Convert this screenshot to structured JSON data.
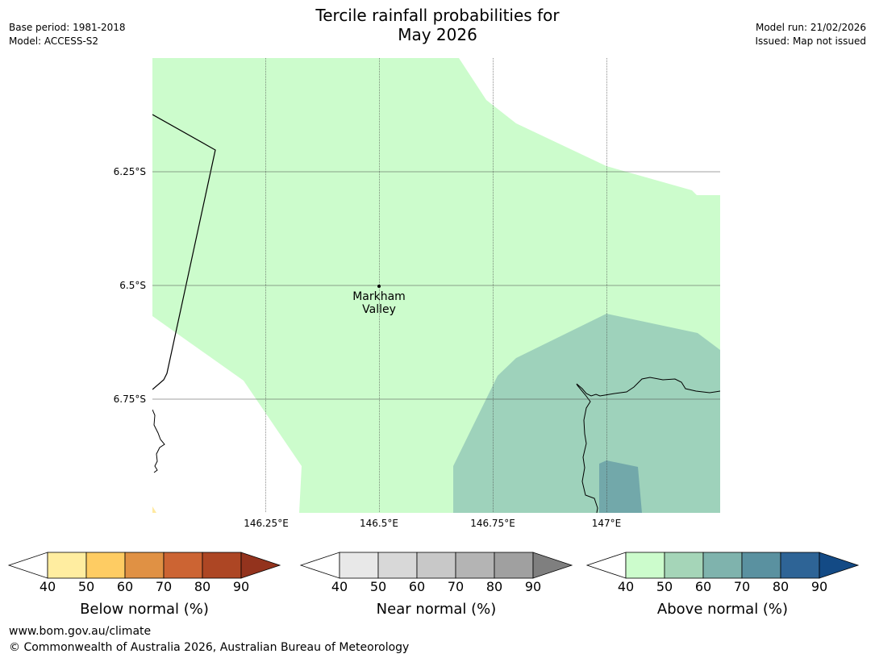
{
  "header": {
    "title_line1": "Tercile rainfall probabilities for",
    "title_line2": "May 2026",
    "base_period": "Base period: 1981-2018",
    "model": "Model: ACCESS-S2",
    "model_run": "Model run: 21/02/2026",
    "issued": "Issued: Map not issued"
  },
  "map": {
    "lat_labels": [
      "6.25°S",
      "6.5°S",
      "6.75°S"
    ],
    "lon_labels": [
      "146.25°E",
      "146.5°E",
      "146.75°E",
      "147°E"
    ],
    "location": {
      "name_line1": "Markham",
      "name_line2": "Valley"
    },
    "region_colors": {
      "above_40_50": "#ccfccc",
      "above_50_60": "#9ed2bb",
      "above_60_70": "#72a8aa",
      "below_40_50": "#ffe9a0"
    }
  },
  "colorbars": [
    {
      "label": "Below normal (%)",
      "ticks": [
        "40",
        "50",
        "60",
        "70",
        "80",
        "90"
      ],
      "colors": [
        "#ffeda0",
        "#fecc63",
        "#e09144",
        "#cc6433",
        "#ad4624"
      ],
      "extend_color": "#93331d"
    },
    {
      "label": "Near normal (%)",
      "ticks": [
        "40",
        "50",
        "60",
        "70",
        "80",
        "90"
      ],
      "colors": [
        "#e8e8e8",
        "#d8d8d8",
        "#c8c8c8",
        "#b4b4b4",
        "#a0a0a0"
      ],
      "extend_color": "#7f7f7f"
    },
    {
      "label": "Above normal (%)",
      "ticks": [
        "40",
        "50",
        "60",
        "70",
        "80",
        "90"
      ],
      "colors": [
        "#ccfccc",
        "#a5d5b8",
        "#7fb3ad",
        "#5a91a0",
        "#2e6496"
      ],
      "extend_color": "#134a85"
    }
  ],
  "footer": {
    "url": "www.bom.gov.au/climate",
    "copyright": "© Commonwealth of Australia 2026, Australian Bureau of Meteorology"
  }
}
